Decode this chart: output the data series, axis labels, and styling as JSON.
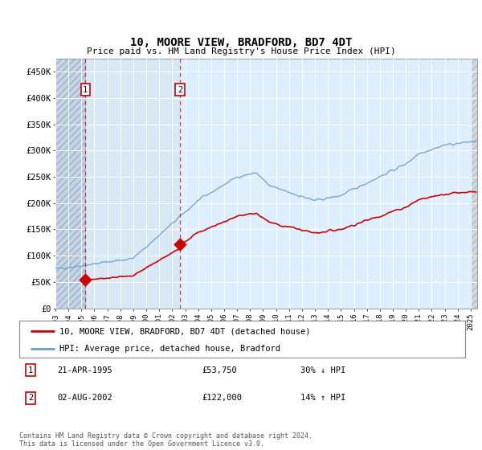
{
  "title": "10, MOORE VIEW, BRADFORD, BD7 4DT",
  "subtitle": "Price paid vs. HM Land Registry's House Price Index (HPI)",
  "yticks": [
    0,
    50000,
    100000,
    150000,
    200000,
    250000,
    300000,
    350000,
    400000,
    450000
  ],
  "ytick_labels": [
    "£0",
    "£50K",
    "£100K",
    "£150K",
    "£200K",
    "£250K",
    "£300K",
    "£350K",
    "£400K",
    "£450K"
  ],
  "ylim": [
    0,
    475000
  ],
  "xlim_start": 1993.0,
  "xlim_end": 2025.5,
  "plot_bg_color": "#ddeeff",
  "main_bg_color": "#e8f0f8",
  "line_red_color": "#cc0000",
  "line_blue_color": "#6699cc",
  "transaction1_x": 1995.31,
  "transaction1_y": 53750,
  "transaction2_x": 2002.59,
  "transaction2_y": 122000,
  "transaction1_date": "21-APR-1995",
  "transaction1_price": "£53,750",
  "transaction1_hpi": "30% ↓ HPI",
  "transaction2_date": "02-AUG-2002",
  "transaction2_price": "£122,000",
  "transaction2_hpi": "14% ↑ HPI",
  "legend_line1": "10, MOORE VIEW, BRADFORD, BD7 4DT (detached house)",
  "legend_line2": "HPI: Average price, detached house, Bradford",
  "footer": "Contains HM Land Registry data © Crown copyright and database right 2024.\nThis data is licensed under the Open Government Licence v3.0.",
  "hatch_left_end": 1995.31,
  "hatch_right_start": 2025.0
}
